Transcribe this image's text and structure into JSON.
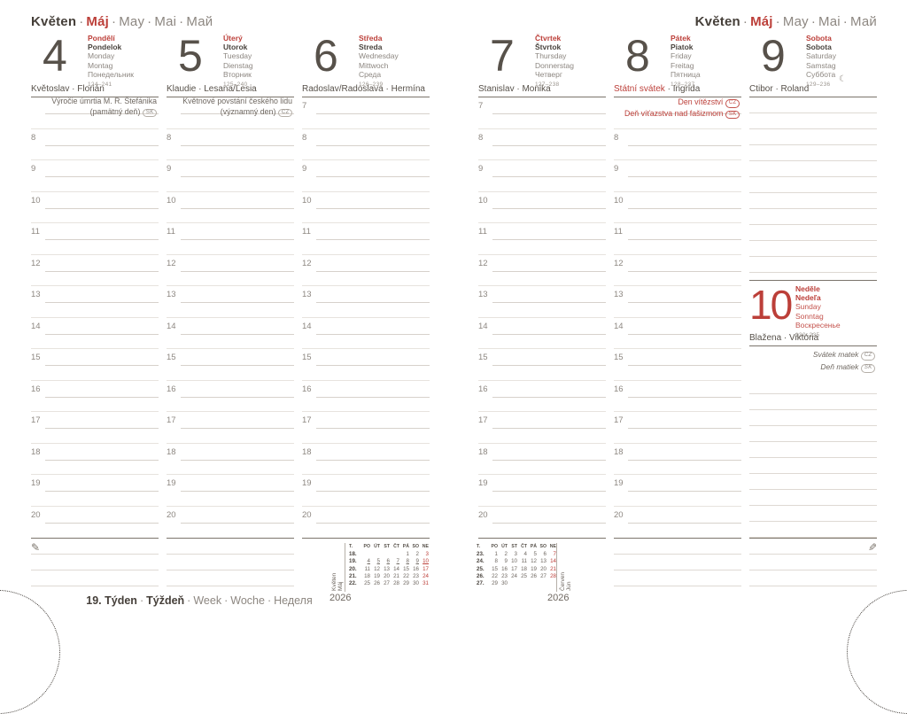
{
  "month_header": {
    "separator": "·",
    "parts": [
      {
        "text": "Květen",
        "style": "dark-bold"
      },
      {
        "text": "Máj",
        "style": "red-bold"
      },
      {
        "text": "May",
        "style": "gray"
      },
      {
        "text": "Mai",
        "style": "gray"
      },
      {
        "text": "Май",
        "style": "gray"
      }
    ]
  },
  "icons": {
    "pencil": "✎",
    "moon": "☾"
  },
  "days": [
    {
      "number": "4",
      "langs": [
        "Pondělí",
        "Pondelok",
        "Monday",
        "Montag",
        "Понедельник"
      ],
      "day_of_year": "124–241",
      "name_day": [
        {
          "text": "Květoslav · Florián"
        }
      ],
      "note": {
        "lines": [
          "Výročie úmrtia M. R. Štefánika",
          "(pamätný deň)"
        ],
        "badge": "SK"
      },
      "first_hour": 8,
      "last_hour": 20
    },
    {
      "number": "5",
      "langs": [
        "Úterý",
        "Utorok",
        "Tuesday",
        "Dienstag",
        "Вторник"
      ],
      "day_of_year": "125–240",
      "name_day": [
        {
          "text": "Klaudie · Lesana/Lesia"
        }
      ],
      "note": {
        "lines": [
          "Květnové povstání českého lidu",
          "(významný den)"
        ],
        "badge": "CZ"
      },
      "first_hour": 8,
      "last_hour": 20
    },
    {
      "number": "6",
      "langs": [
        "Středa",
        "Streda",
        "Wednesday",
        "Mittwoch",
        "Среда"
      ],
      "day_of_year": "126–239",
      "name_day": [
        {
          "text": "Radoslav/Radoslava · Hermína"
        }
      ],
      "first_hour": 7,
      "last_hour": 20
    },
    {
      "number": "7",
      "langs": [
        "Čtvrtek",
        "Štvrtok",
        "Thursday",
        "Donnerstag",
        "Четверг"
      ],
      "day_of_year": "127–238",
      "name_day": [
        {
          "text": "Stanislav · Monika"
        }
      ],
      "first_hour": 7,
      "last_hour": 20
    },
    {
      "number": "8",
      "langs": [
        "Pátek",
        "Piatok",
        "Friday",
        "Freitag",
        "Пятница"
      ],
      "day_of_year": "128–237",
      "name_day": [
        {
          "text": "Státní svátek",
          "style": "red"
        },
        {
          "text": " · Ingrida"
        }
      ],
      "holiday_notes": [
        {
          "text": "Den vítězství",
          "badge": "CZ"
        },
        {
          "text": "Deň víťazstva nad fašizmom",
          "badge": "SK"
        }
      ],
      "first_hour": 8,
      "last_hour": 20
    },
    {
      "number": "9",
      "langs": [
        "Sobota",
        "Sobota",
        "Saturday",
        "Samstag",
        "Суббота"
      ],
      "day_of_year": "129–236",
      "moon": true,
      "name_day": [
        {
          "text": "Ctibor · Roland"
        }
      ]
    },
    {
      "number": "10",
      "langs": [
        "Neděle",
        "Nedeľa",
        "Sunday",
        "Sonntag",
        "Воскресенье"
      ],
      "day_of_year": "130–235",
      "name_day": [
        {
          "text": "Blažena · Viktória"
        }
      ],
      "holiday_notes": [
        {
          "text": "Svátek matek",
          "badge": "CZ"
        },
        {
          "text": "Deň matiek",
          "badge": "SK"
        }
      ]
    }
  ],
  "week_footer": {
    "separator": "·",
    "parts": [
      {
        "text": "19. Týden",
        "style": "dark-bold"
      },
      {
        "text": "Týždeň",
        "style": "dark-bold"
      },
      {
        "text": "Week",
        "style": "gray"
      },
      {
        "text": "Woche",
        "style": "gray"
      },
      {
        "text": "Неделя",
        "style": "gray"
      }
    ]
  },
  "year": "2026",
  "mini_calendars": [
    {
      "month_lines": [
        "Květen",
        "Máj"
      ],
      "header": [
        "T.",
        "PO",
        "ÚT",
        "ST",
        "ČT",
        "PÁ",
        "SO",
        "NE"
      ],
      "weeks": [
        {
          "num": "18.",
          "days": [
            "",
            "",
            "",
            "",
            "1",
            "2",
            "3"
          ],
          "current": false
        },
        {
          "num": "19.",
          "days": [
            "4",
            "5",
            "6",
            "7",
            "8",
            "9",
            "10"
          ],
          "current": true
        },
        {
          "num": "20.",
          "days": [
            "11",
            "12",
            "13",
            "14",
            "15",
            "16",
            "17"
          ],
          "current": false
        },
        {
          "num": "21.",
          "days": [
            "18",
            "19",
            "20",
            "21",
            "22",
            "23",
            "24"
          ],
          "current": false
        },
        {
          "num": "22.",
          "days": [
            "25",
            "26",
            "27",
            "28",
            "29",
            "30",
            "31"
          ],
          "current": false
        }
      ]
    },
    {
      "month_lines": [
        "Červen",
        "Jún"
      ],
      "header": [
        "T.",
        "PO",
        "ÚT",
        "ST",
        "ČT",
        "PÁ",
        "SO",
        "NE"
      ],
      "weeks": [
        {
          "num": "23.",
          "days": [
            "1",
            "2",
            "3",
            "4",
            "5",
            "6",
            "7"
          ],
          "current": false
        },
        {
          "num": "24.",
          "days": [
            "8",
            "9",
            "10",
            "11",
            "12",
            "13",
            "14"
          ],
          "current": false
        },
        {
          "num": "25.",
          "days": [
            "15",
            "16",
            "17",
            "18",
            "19",
            "20",
            "21"
          ],
          "current": false
        },
        {
          "num": "26.",
          "days": [
            "22",
            "23",
            "24",
            "25",
            "26",
            "27",
            "28"
          ],
          "current": false
        },
        {
          "num": "27.",
          "days": [
            "29",
            "30",
            "",
            "",
            "",
            "",
            ""
          ],
          "current": false
        }
      ]
    }
  ]
}
